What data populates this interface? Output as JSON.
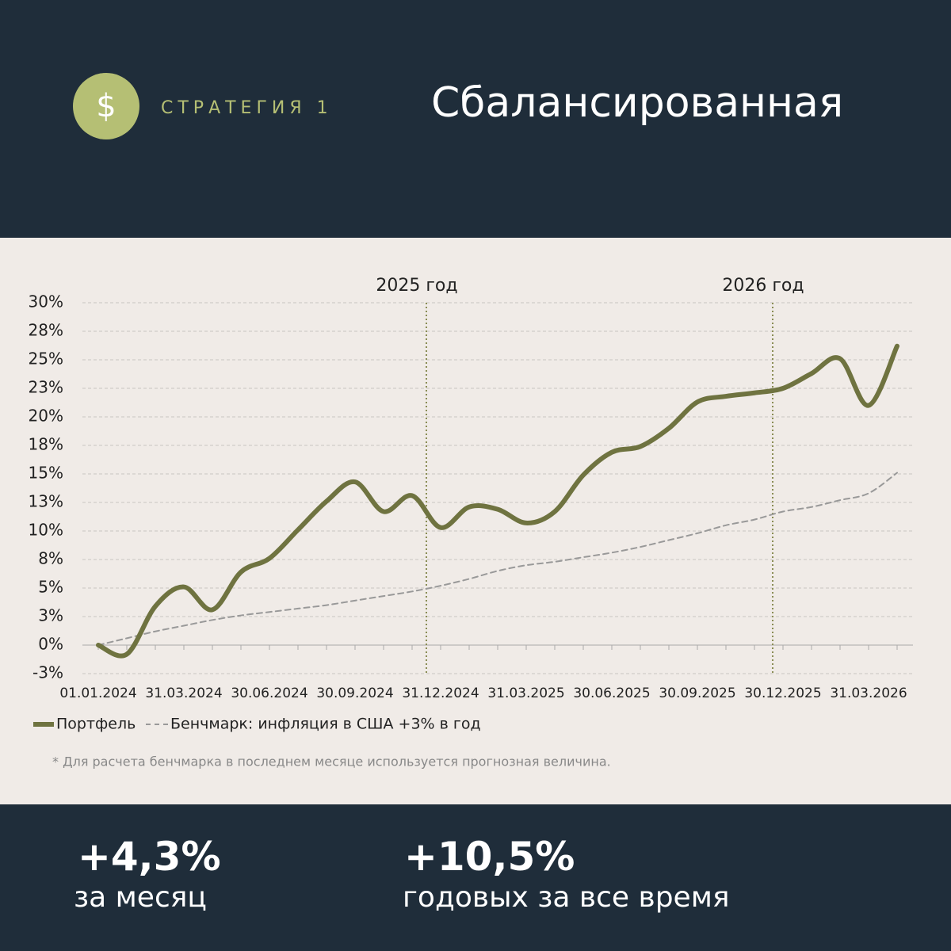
{
  "header": {
    "icon": "$",
    "label": "СТРАТЕГИЯ 1",
    "title": "Сбалансированная"
  },
  "chart_data": {
    "type": "line",
    "categories": [
      "01.01.2024",
      null,
      null,
      "31.03.2024",
      null,
      null,
      "30.06.2024",
      null,
      null,
      "30.09.2024",
      null,
      null,
      "31.12.2024",
      null,
      null,
      "31.03.2025",
      null,
      null,
      "30.06.2025",
      null,
      null,
      "30.09.2025",
      null,
      null,
      "30.12.2025",
      null,
      null,
      "31.03.2026",
      null
    ],
    "series": [
      {
        "name": "Портфель",
        "color": "#6f7340",
        "values": [
          0,
          -0.8,
          3.4,
          5.1,
          3.1,
          6.4,
          7.6,
          10.1,
          12.6,
          14.3,
          11.7,
          13.1,
          10.3,
          12.1,
          11.9,
          10.7,
          11.7,
          14.9,
          16.9,
          17.4,
          19.0,
          21.3,
          21.8,
          22.1,
          22.5,
          23.8,
          25.1,
          21.0,
          26.2
        ]
      },
      {
        "name": "Бенчмарк: инфляция в США +3% в год",
        "color": "#999999",
        "values": [
          0,
          0.6,
          1.2,
          1.7,
          2.2,
          2.6,
          2.9,
          3.2,
          3.5,
          3.9,
          4.3,
          4.7,
          5.2,
          5.8,
          6.5,
          7.0,
          7.3,
          7.7,
          8.1,
          8.6,
          9.2,
          9.8,
          10.5,
          11.0,
          11.7,
          12.1,
          12.7,
          13.3,
          15.1
        ]
      }
    ],
    "ylim": [
      -2.5,
      30
    ],
    "yticks": [
      {
        "value": -2.5,
        "label": "-3%"
      },
      {
        "value": 0,
        "label": "0%"
      },
      {
        "value": 2.5,
        "label": "3%"
      },
      {
        "value": 5,
        "label": "5%"
      },
      {
        "value": 7.5,
        "label": "8%"
      },
      {
        "value": 10,
        "label": "10%"
      },
      {
        "value": 12.5,
        "label": "13%"
      },
      {
        "value": 15,
        "label": "15%"
      },
      {
        "value": 17.5,
        "label": "18%"
      },
      {
        "value": 20,
        "label": "20%"
      },
      {
        "value": 22.5,
        "label": "23%"
      },
      {
        "value": 25,
        "label": "25%"
      },
      {
        "value": 27.5,
        "label": "28%"
      },
      {
        "value": 30,
        "label": "30%"
      }
    ],
    "grid": true,
    "annotations": [
      {
        "text": "2025 год"
      },
      {
        "text": "2026 год"
      }
    ],
    "footnote": "* Для расчета бенчмарка в последнем месяце используется прогнозная величина."
  },
  "stats": [
    {
      "value": "+4,3%",
      "caption": "за месяц"
    },
    {
      "value": "+10,5%",
      "caption": "годовых за все время"
    }
  ]
}
